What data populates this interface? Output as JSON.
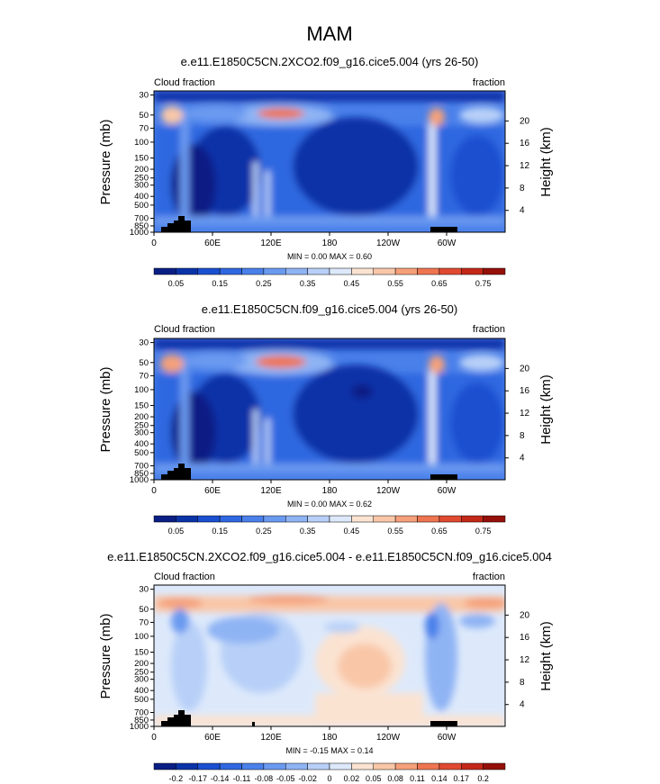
{
  "season_title": "MAM",
  "colors": {
    "cloud_scale": [
      "#0a1f85",
      "#0b33a8",
      "#1a4fd0",
      "#2f67e0",
      "#4a80ea",
      "#6a9af0",
      "#8fb4f4",
      "#b8d0f8",
      "#dde9fb",
      "#fbe3d2",
      "#f9c7a8",
      "#f5a07a",
      "#ee7550",
      "#e04a30",
      "#c42818",
      "#95100a"
    ],
    "diff_scale": [
      "#0a1f85",
      "#0b33a8",
      "#1a4fd0",
      "#2f67e0",
      "#4a80ea",
      "#6a9af0",
      "#8fb4f4",
      "#b8d0f8",
      "#dde9fb",
      "#fbe3d2",
      "#f9c7a8",
      "#f5a07a",
      "#ee7550",
      "#e04a30",
      "#c42818",
      "#95100a"
    ],
    "topography": "#000000"
  },
  "chart_data": [
    {
      "type": "heatmap",
      "title": "e.e11.E1850C5CN.2XCO2.f09_g16.cice5.004 (yrs 26-50)",
      "left_label": "Cloud fraction",
      "right_label": "fraction",
      "ylabel": "Pressure (mb)",
      "ylabel_right": "Height (km)",
      "x_ticks": [
        "0",
        "60E",
        "120E",
        "180",
        "120W",
        "60W"
      ],
      "x_tick_values": [
        0,
        60,
        120,
        180,
        240,
        300
      ],
      "xlim": [
        0,
        360
      ],
      "y_ticks": [
        "30",
        "50",
        "70",
        "100",
        "150",
        "200",
        "250",
        "300",
        "400",
        "500",
        "700",
        "850",
        "1000"
      ],
      "ylim": [
        0,
        1000
      ],
      "height_ticks": [
        "20",
        "16",
        "12",
        "8",
        "4"
      ],
      "height_tick_values": [
        20,
        16,
        12,
        8,
        4
      ],
      "min_max_label": "MIN =   0.00  MAX =   0.60",
      "min": 0.0,
      "max": 0.6,
      "colorbar_labels": [
        "0.05",
        "0.15",
        "0.25",
        "0.35",
        "0.45",
        "0.55",
        "0.65",
        "0.75"
      ]
    },
    {
      "type": "heatmap",
      "title": "e.e11.E1850C5CN.f09_g16.cice5.004 (yrs 26-50)",
      "left_label": "Cloud fraction",
      "right_label": "fraction",
      "ylabel": "Pressure (mb)",
      "ylabel_right": "Height (km)",
      "x_ticks": [
        "0",
        "60E",
        "120E",
        "180",
        "120W",
        "60W"
      ],
      "x_tick_values": [
        0,
        60,
        120,
        180,
        240,
        300
      ],
      "xlim": [
        0,
        360
      ],
      "y_ticks": [
        "30",
        "50",
        "70",
        "100",
        "150",
        "200",
        "250",
        "300",
        "400",
        "500",
        "700",
        "850",
        "1000"
      ],
      "ylim": [
        0,
        1000
      ],
      "height_ticks": [
        "20",
        "16",
        "12",
        "8",
        "4"
      ],
      "height_tick_values": [
        20,
        16,
        12,
        8,
        4
      ],
      "min_max_label": "MIN =   0.00  MAX =   0.62",
      "min": 0.0,
      "max": 0.62,
      "colorbar_labels": [
        "0.05",
        "0.15",
        "0.25",
        "0.35",
        "0.45",
        "0.55",
        "0.65",
        "0.75"
      ]
    },
    {
      "type": "heatmap",
      "title": "e.e11.E1850C5CN.2XCO2.f09_g16.cice5.004 - e.e11.E1850C5CN.f09_g16.cice5.004",
      "left_label": "Cloud fraction",
      "right_label": "fraction",
      "ylabel": "Pressure (mb)",
      "ylabel_right": "Height (km)",
      "x_ticks": [
        "0",
        "60E",
        "120E",
        "180",
        "120W",
        "60W"
      ],
      "x_tick_values": [
        0,
        60,
        120,
        180,
        240,
        300
      ],
      "xlim": [
        0,
        360
      ],
      "y_ticks": [
        "30",
        "50",
        "70",
        "100",
        "150",
        "200",
        "250",
        "300",
        "400",
        "500",
        "700",
        "850",
        "1000"
      ],
      "ylim": [
        0,
        1000
      ],
      "height_ticks": [
        "20",
        "16",
        "12",
        "8",
        "4"
      ],
      "height_tick_values": [
        20,
        16,
        12,
        8,
        4
      ],
      "min_max_label": "MIN =  -0.15  MAX =   0.14",
      "min": -0.15,
      "max": 0.14,
      "colorbar_labels": [
        "-0.2",
        "-0.17",
        "-0.14",
        "-0.11",
        "-0.08",
        "-0.05",
        "-0.02",
        "0",
        "0.02",
        "0.05",
        "0.08",
        "0.11",
        "0.14",
        "0.17",
        "0.2"
      ]
    }
  ]
}
